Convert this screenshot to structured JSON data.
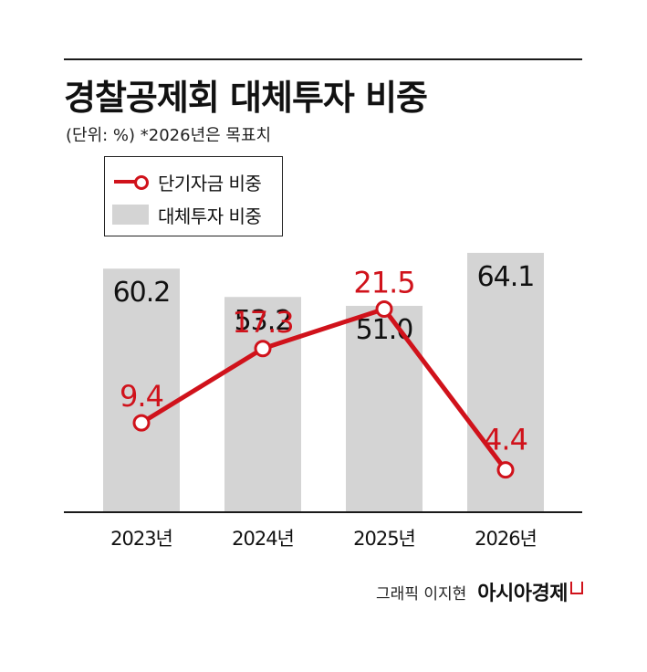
{
  "header": {
    "title": "경찰공제회 대체투자 비중",
    "subtitle": "(단위: %)  *2026년은 목표치"
  },
  "legend": {
    "line_label": "단기자금 비중",
    "bar_label": "대체투자 비중"
  },
  "credit": {
    "byline": "그래픽 이지현",
    "brand": "아시아경제"
  },
  "colors": {
    "line": "#d0121b",
    "bar": "#d4d4d4",
    "text": "#111111"
  },
  "chart_data": {
    "type": "bar",
    "categories": [
      "2023년",
      "2024년",
      "2025년",
      "2026년"
    ],
    "series": [
      {
        "name": "대체투자 비중",
        "kind": "bar",
        "values": [
          60.2,
          53.2,
          51.0,
          64.1
        ],
        "labels": [
          "60.2",
          "53.2",
          "51.0",
          "64.1"
        ]
      },
      {
        "name": "단기자금 비중",
        "kind": "line",
        "values": [
          9.4,
          17.3,
          21.5,
          4.4
        ],
        "labels": [
          "9.4",
          "17.3",
          "21.5",
          "4.4"
        ]
      }
    ],
    "bar_axis_range": [
      0,
      95
    ],
    "line_axis_range": [
      0,
      33
    ],
    "grid": false,
    "legend_position": "top-left"
  }
}
